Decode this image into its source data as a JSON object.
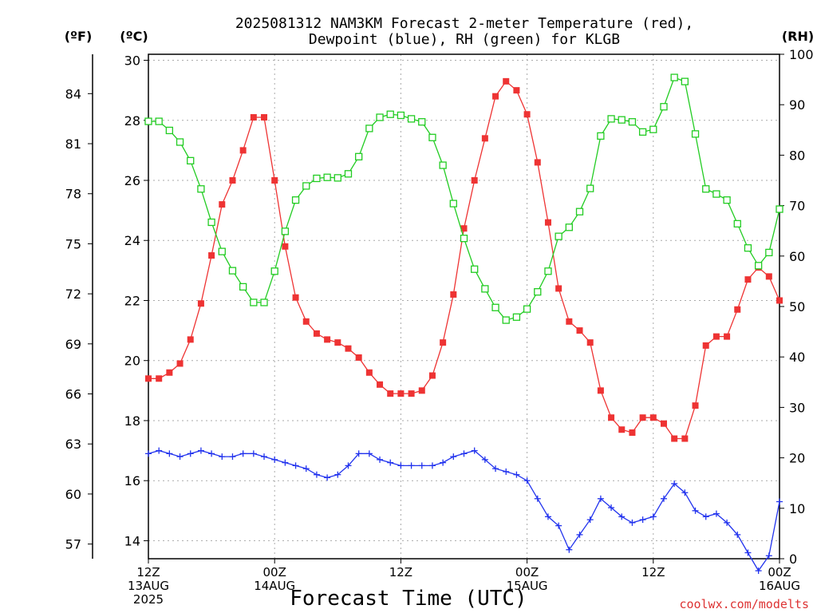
{
  "chart_data": {
    "type": "line",
    "title_lines": [
      "2025081312 NAM3KM Forecast 2-meter Temperature (red),",
      "Dewpoint (blue), RH (green) for KLGB"
    ],
    "xlabel": "Forecast Time (UTC)",
    "credit": "coolwx.com/modelts",
    "unit_labels": {
      "f": "(ºF)",
      "c": "(ºC)",
      "rh": "(RH)"
    },
    "x_ticks": [
      {
        "hour": 0,
        "lines": [
          "12Z",
          "13AUG",
          "2025"
        ]
      },
      {
        "hour": 12,
        "lines": [
          "00Z",
          "14AUG"
        ]
      },
      {
        "hour": 24,
        "lines": [
          "12Z"
        ]
      },
      {
        "hour": 36,
        "lines": [
          "00Z",
          "15AUG"
        ]
      },
      {
        "hour": 48,
        "lines": [
          "12Z"
        ]
      },
      {
        "hour": 60,
        "lines": [
          "00Z",
          "16AUG"
        ]
      }
    ],
    "xlim": [
      0,
      60
    ],
    "c_axis": {
      "ylim": [
        13.4,
        30.2
      ],
      "ticks": [
        14,
        16,
        18,
        20,
        22,
        24,
        26,
        28,
        30
      ]
    },
    "f_axis": {
      "ticks": [
        57,
        60,
        63,
        66,
        69,
        72,
        75,
        78,
        81,
        84
      ]
    },
    "rh_axis": {
      "ylim": [
        0,
        100
      ],
      "ticks": [
        0,
        10,
        20,
        30,
        40,
        50,
        60,
        70,
        80,
        90,
        100
      ]
    },
    "grid": true,
    "colors": {
      "temperature": "#ee3333",
      "dewpoint": "#2233ee",
      "rh": "#22cc22",
      "credit": "#dd3333"
    },
    "x": [
      0,
      1,
      2,
      3,
      4,
      5,
      6,
      7,
      8,
      9,
      10,
      11,
      12,
      13,
      14,
      15,
      16,
      17,
      18,
      19,
      20,
      21,
      22,
      23,
      24,
      25,
      26,
      27,
      28,
      29,
      30,
      31,
      32,
      33,
      34,
      35,
      36,
      37,
      38,
      39,
      40,
      41,
      42,
      43,
      44,
      45,
      46,
      47,
      48,
      49,
      50,
      51,
      52,
      53,
      54,
      55,
      56,
      57,
      58,
      59,
      60
    ],
    "series": [
      {
        "name": "Temperature",
        "units": "°C",
        "values": [
          19.4,
          19.4,
          19.6,
          19.9,
          20.7,
          21.9,
          23.5,
          25.2,
          26.0,
          27.0,
          28.1,
          28.1,
          26.0,
          23.8,
          22.1,
          21.3,
          20.9,
          20.7,
          20.6,
          20.4,
          20.1,
          19.6,
          19.2,
          18.9,
          18.9,
          18.9,
          19.0,
          19.5,
          20.6,
          22.2,
          24.4,
          26.0,
          27.4,
          28.8,
          29.3,
          29.0,
          28.2,
          26.6,
          24.6,
          22.4,
          21.3,
          21.0,
          20.6,
          19.0,
          18.1,
          17.7,
          17.6,
          18.1,
          18.1,
          17.9,
          17.4,
          17.4,
          18.5,
          20.5,
          20.8,
          20.8,
          21.7,
          22.7,
          23.1,
          22.8,
          22.0
        ]
      },
      {
        "name": "Dewpoint",
        "units": "°C",
        "values": [
          16.9,
          17.0,
          16.9,
          16.8,
          16.9,
          17.0,
          16.9,
          16.8,
          16.8,
          16.9,
          16.9,
          16.8,
          16.7,
          16.6,
          16.5,
          16.4,
          16.2,
          16.1,
          16.2,
          16.5,
          16.9,
          16.9,
          16.7,
          16.6,
          16.5,
          16.5,
          16.5,
          16.5,
          16.6,
          16.8,
          16.9,
          17.0,
          16.7,
          16.4,
          16.3,
          16.2,
          16.0,
          15.4,
          14.8,
          14.5,
          13.7,
          14.2,
          14.7,
          15.4,
          15.1,
          14.8,
          14.6,
          14.7,
          14.8,
          15.4,
          15.9,
          15.6,
          15.0,
          14.8,
          14.9,
          14.6,
          14.2,
          13.6,
          13.0,
          13.5,
          15.3
        ]
      },
      {
        "name": "RH",
        "units": "%",
        "values": [
          86.7,
          86.7,
          84.9,
          82.6,
          78.9,
          73.3,
          66.7,
          60.9,
          57.1,
          53.9,
          50.8,
          50.8,
          57.0,
          64.9,
          71.1,
          73.9,
          75.4,
          75.6,
          75.5,
          76.3,
          79.7,
          85.3,
          87.5,
          88.1,
          87.9,
          87.2,
          86.6,
          83.5,
          78.0,
          70.4,
          63.5,
          57.4,
          53.5,
          49.8,
          47.3,
          47.9,
          49.5,
          52.9,
          57.0,
          63.9,
          65.7,
          68.8,
          73.4,
          83.8,
          87.2,
          87.0,
          86.6,
          84.6,
          85.1,
          89.6,
          95.4,
          94.6,
          84.2,
          73.3,
          72.3,
          71.1,
          66.4,
          61.6,
          58.1,
          60.7,
          69.3
        ]
      }
    ]
  }
}
